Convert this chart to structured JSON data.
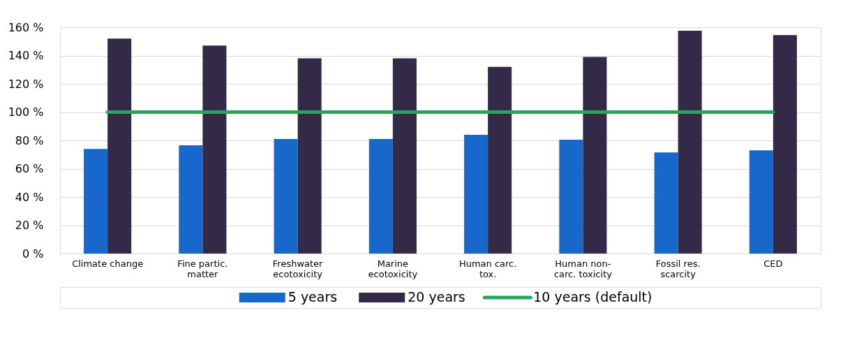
{
  "chart_data": {
    "type": "bar",
    "categories": [
      "Climate change",
      "Fine partic.\nmatter",
      "Freshwater\necotoxicity",
      "Marine\necotoxicity",
      "Human carc.\ntox.",
      "Human non-\ncarc. toxicity",
      "Fossil res.\nscarcity",
      "CED"
    ],
    "series": [
      {
        "name": "5 years",
        "color": "#1868cc",
        "values": [
          74,
          76.5,
          81,
          81,
          84,
          80.5,
          71.5,
          73
        ]
      },
      {
        "name": "20 years",
        "color": "#332a48",
        "values": [
          152,
          147,
          138,
          138,
          132,
          139,
          157.5,
          154.5
        ]
      },
      {
        "name": "10 years (default)",
        "type": "line",
        "color": "#22a858",
        "values": [
          100,
          100,
          100,
          100,
          100,
          100,
          100,
          100
        ]
      }
    ],
    "ylim": [
      0,
      160
    ],
    "yticks": [
      {
        "value": 0,
        "label": "0 %"
      },
      {
        "value": 20,
        "label": "20 %"
      },
      {
        "value": 40,
        "label": "40 %"
      },
      {
        "value": 60,
        "label": "60 %"
      },
      {
        "value": 80,
        "label": "80 %"
      },
      {
        "value": 100,
        "label": "100 %"
      },
      {
        "value": 120,
        "label": "120 %"
      },
      {
        "value": 140,
        "label": "140 %"
      },
      {
        "value": 160,
        "label": "160 %"
      }
    ],
    "grid": "y",
    "legend": "bottom"
  }
}
